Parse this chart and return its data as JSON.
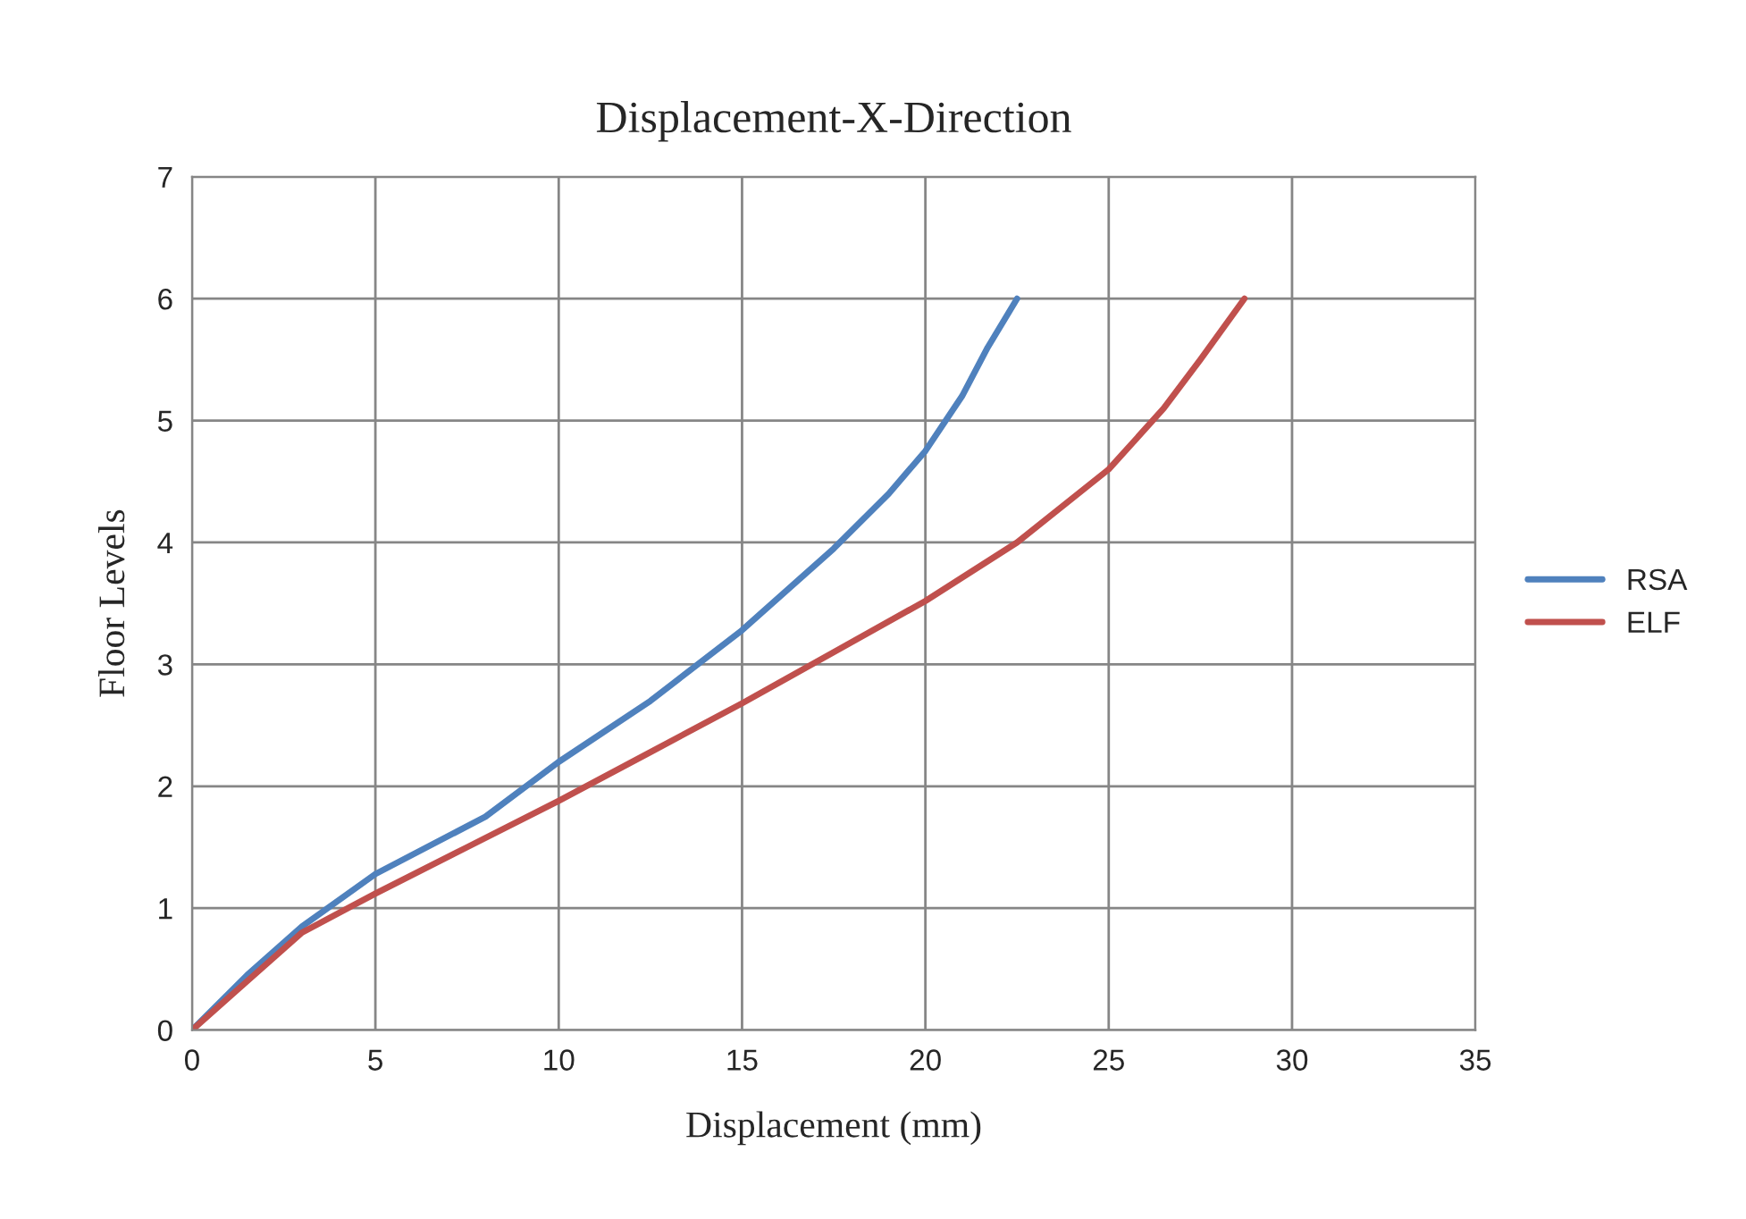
{
  "chart_data": {
    "type": "line",
    "title": "Displacement-X-Direction",
    "xlabel": "Displacement (mm)",
    "ylabel": "Floor Levels",
    "xlim": [
      0,
      35
    ],
    "xticks": [
      0,
      5,
      10,
      15,
      20,
      25,
      30,
      35
    ],
    "ylim": [
      0,
      7
    ],
    "yticks": [
      0,
      1,
      2,
      3,
      4,
      5,
      6,
      7
    ],
    "grid": true,
    "legend": "right",
    "marker": "none",
    "line_style": "solid",
    "series": [
      {
        "name": "RSA",
        "color": "#4f81bd",
        "x": [
          0,
          1.5,
          3,
          5,
          8,
          10,
          12.5,
          15,
          17.5,
          19,
          20,
          21,
          21.7,
          22.5
        ],
        "values": [
          0,
          0.45,
          0.85,
          1.28,
          1.75,
          2.2,
          2.7,
          3.28,
          3.95,
          4.4,
          4.75,
          5.2,
          5.6,
          6
        ]
      },
      {
        "name": "ELF",
        "color": "#c0504d",
        "x": [
          0,
          1.5,
          3,
          5,
          7.5,
          10,
          12.5,
          15,
          17.5,
          20,
          22.5,
          25,
          26.5,
          27.5,
          28.7
        ],
        "values": [
          0,
          0.4,
          0.8,
          1.12,
          1.5,
          1.88,
          2.28,
          2.68,
          3.1,
          3.52,
          4,
          4.6,
          5.1,
          5.5,
          6
        ]
      }
    ]
  }
}
